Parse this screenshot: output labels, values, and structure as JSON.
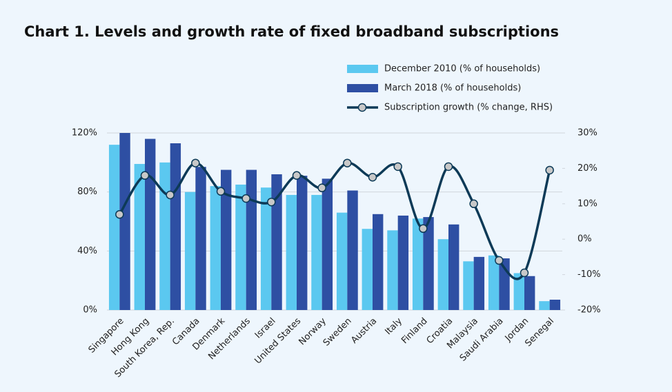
{
  "chart_data": {
    "type": "bar_line",
    "title": "Chart 1. Levels and growth rate of fixed broadband subscriptions",
    "categories": [
      "Singapore",
      "Hong Kong",
      "South Korea, Rep.",
      "Canada",
      "Denmark",
      "Netherlands",
      "Israel",
      "United States",
      "Norway",
      "Sweden",
      "Austria",
      "Italy",
      "Finland",
      "Croatia",
      "Malaysia",
      "Saudi Arabia",
      "Jordan",
      "Senegal"
    ],
    "series": [
      {
        "name": "December 2010 (% of households)",
        "color": "#5bc8f0",
        "type": "bar",
        "values": [
          112,
          99,
          100,
          80,
          84,
          85,
          83,
          78,
          78,
          66,
          55,
          54,
          62,
          48,
          33,
          37,
          25,
          6
        ]
      },
      {
        "name": "March 2018 (% of households)",
        "color": "#2e4fa3",
        "type": "bar",
        "values": [
          120,
          116,
          113,
          97,
          95,
          95,
          92,
          91,
          89,
          81,
          65,
          64,
          63,
          58,
          36,
          35,
          23,
          7
        ]
      },
      {
        "name": "Subscription growth (% change, RHS)",
        "color": "#0d3a57",
        "type": "line",
        "axis": "y2",
        "marker_color": "#c8c8c8",
        "values": [
          7,
          18,
          12.5,
          21.5,
          13.5,
          11.5,
          10.5,
          18,
          14.5,
          21.5,
          17.5,
          20.5,
          3,
          20.5,
          10,
          -6,
          -9.5,
          19.5
        ]
      }
    ],
    "ylim": [
      0,
      120
    ],
    "yticks": [
      {
        "value": 0,
        "label": "0%"
      },
      {
        "value": 40,
        "label": "40%"
      },
      {
        "value": 80,
        "label": "80%"
      },
      {
        "value": 120,
        "label": "120%"
      }
    ],
    "y2lim": [
      -20,
      30
    ],
    "y2ticks": [
      {
        "value": -20,
        "label": "-20%"
      },
      {
        "value": -10,
        "label": "-10%"
      },
      {
        "value": 0,
        "label": "0%"
      },
      {
        "value": 10,
        "label": "10%"
      },
      {
        "value": 20,
        "label": "20%"
      },
      {
        "value": 30,
        "label": "30%"
      }
    ],
    "grid": true
  }
}
